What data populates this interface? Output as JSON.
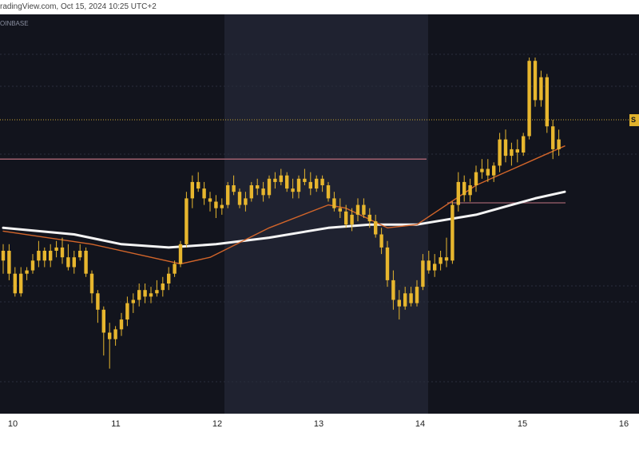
{
  "header": {
    "title": "radingView.com, Oct 15, 2024 10:25 UTC+2"
  },
  "chart_data": {
    "type": "candlestick",
    "source": "OINBASE",
    "x_tick_labels": [
      "10",
      "11",
      "12",
      "13",
      "14",
      "15",
      "16"
    ],
    "y_range": [
      0,
      100
    ],
    "last_price_label": "S",
    "colors": {
      "background": "#12141d",
      "shaded_session": "#1f2230",
      "candle": "#e7b62e",
      "ma_fast": "#d2652a",
      "ma_slow": "#f4f4f4",
      "resistance_line": "#a0606e",
      "price_line": "#c9a532"
    },
    "candles": [
      [
        37,
        42,
        33,
        40
      ],
      [
        40,
        42,
        31,
        33
      ],
      [
        33,
        35,
        26,
        27
      ],
      [
        27,
        35,
        26,
        33
      ],
      [
        33,
        35,
        31,
        34
      ],
      [
        34,
        39,
        33,
        37
      ],
      [
        37,
        43,
        35,
        40
      ],
      [
        40,
        41,
        35,
        37
      ],
      [
        37,
        42,
        35,
        40
      ],
      [
        40,
        43,
        38,
        41
      ],
      [
        41,
        44,
        36,
        38
      ],
      [
        38,
        42,
        34,
        35
      ],
      [
        35,
        40,
        33,
        38
      ],
      [
        38,
        42,
        37,
        40
      ],
      [
        40,
        41,
        32,
        33
      ],
      [
        33,
        34,
        24,
        27
      ],
      [
        27,
        28,
        18,
        22
      ],
      [
        22,
        23,
        8,
        15
      ],
      [
        15,
        18,
        4,
        13
      ],
      [
        13,
        17,
        11,
        16
      ],
      [
        16,
        21,
        14,
        19
      ],
      [
        19,
        26,
        17,
        24
      ],
      [
        24,
        27,
        21,
        25
      ],
      [
        25,
        30,
        23,
        28
      ],
      [
        28,
        30,
        24,
        26
      ],
      [
        26,
        29,
        24,
        27
      ],
      [
        27,
        31,
        26,
        28
      ],
      [
        28,
        32,
        26,
        30
      ],
      [
        30,
        35,
        28,
        33
      ],
      [
        33,
        37,
        32,
        36
      ],
      [
        36,
        43,
        35,
        42
      ],
      [
        42,
        58,
        41,
        56
      ],
      [
        56,
        63,
        53,
        61
      ],
      [
        61,
        64,
        58,
        59
      ],
      [
        59,
        61,
        54,
        56
      ],
      [
        56,
        58,
        52,
        55
      ],
      [
        55,
        57,
        50,
        53
      ],
      [
        53,
        56,
        51,
        54
      ],
      [
        54,
        61,
        53,
        60
      ],
      [
        60,
        63,
        57,
        58
      ],
      [
        58,
        59,
        53,
        54
      ],
      [
        54,
        58,
        52,
        56
      ],
      [
        56,
        61,
        55,
        60
      ],
      [
        60,
        62,
        57,
        59
      ],
      [
        59,
        61,
        55,
        57
      ],
      [
        57,
        63,
        56,
        62
      ],
      [
        62,
        64,
        59,
        61
      ],
      [
        61,
        65,
        60,
        63
      ],
      [
        63,
        64,
        58,
        59
      ],
      [
        59,
        62,
        56,
        58
      ],
      [
        58,
        63,
        56,
        62
      ],
      [
        62,
        65,
        60,
        61
      ],
      [
        61,
        64,
        57,
        59
      ],
      [
        59,
        63,
        58,
        62
      ],
      [
        62,
        63,
        58,
        60
      ],
      [
        60,
        61,
        55,
        56
      ],
      [
        56,
        58,
        52,
        53
      ],
      [
        53,
        56,
        50,
        52
      ],
      [
        52,
        54,
        47,
        48
      ],
      [
        48,
        53,
        46,
        51
      ],
      [
        51,
        56,
        49,
        54
      ],
      [
        54,
        56,
        50,
        51
      ],
      [
        51,
        53,
        47,
        49
      ],
      [
        49,
        51,
        44,
        45
      ],
      [
        45,
        47,
        39,
        41
      ],
      [
        41,
        43,
        29,
        31
      ],
      [
        31,
        34,
        22,
        25
      ],
      [
        25,
        28,
        19,
        23
      ],
      [
        23,
        29,
        22,
        27
      ],
      [
        27,
        29,
        23,
        24
      ],
      [
        24,
        31,
        23,
        29
      ],
      [
        29,
        39,
        28,
        37
      ],
      [
        37,
        40,
        33,
        34
      ],
      [
        34,
        39,
        32,
        36
      ],
      [
        36,
        40,
        34,
        38
      ],
      [
        38,
        44,
        35,
        37
      ],
      [
        37,
        55,
        36,
        54
      ],
      [
        54,
        64,
        52,
        61
      ],
      [
        61,
        63,
        55,
        57
      ],
      [
        57,
        62,
        55,
        60
      ],
      [
        60,
        66,
        58,
        64
      ],
      [
        64,
        68,
        62,
        65
      ],
      [
        65,
        68,
        61,
        63
      ],
      [
        63,
        67,
        61,
        66
      ],
      [
        66,
        76,
        64,
        74
      ],
      [
        74,
        77,
        67,
        69
      ],
      [
        69,
        73,
        66,
        71
      ],
      [
        71,
        74,
        67,
        70
      ],
      [
        70,
        76,
        69,
        75
      ],
      [
        75,
        99,
        74,
        98
      ],
      [
        98,
        99,
        84,
        86
      ],
      [
        86,
        95,
        84,
        93
      ],
      [
        93,
        94,
        76,
        78
      ],
      [
        78,
        80,
        68,
        71
      ],
      [
        71,
        77,
        69,
        74
      ]
    ],
    "ma_fast": [
      [
        0,
        46
      ],
      [
        15,
        42
      ],
      [
        25,
        38
      ],
      [
        30,
        36
      ],
      [
        35,
        38
      ],
      [
        45,
        47
      ],
      [
        55,
        54
      ],
      [
        58,
        53
      ],
      [
        65,
        47
      ],
      [
        70,
        48
      ],
      [
        80,
        60
      ],
      [
        90,
        68
      ],
      [
        95,
        72
      ]
    ],
    "ma_slow": [
      [
        0,
        47
      ],
      [
        12,
        45
      ],
      [
        20,
        42
      ],
      [
        28,
        41
      ],
      [
        36,
        42
      ],
      [
        45,
        44
      ],
      [
        55,
        47
      ],
      [
        62,
        48
      ],
      [
        70,
        48
      ],
      [
        80,
        51
      ],
      [
        90,
        56
      ],
      [
        95,
        58
      ]
    ],
    "resistance_level": 68,
    "price_level": 80
  }
}
